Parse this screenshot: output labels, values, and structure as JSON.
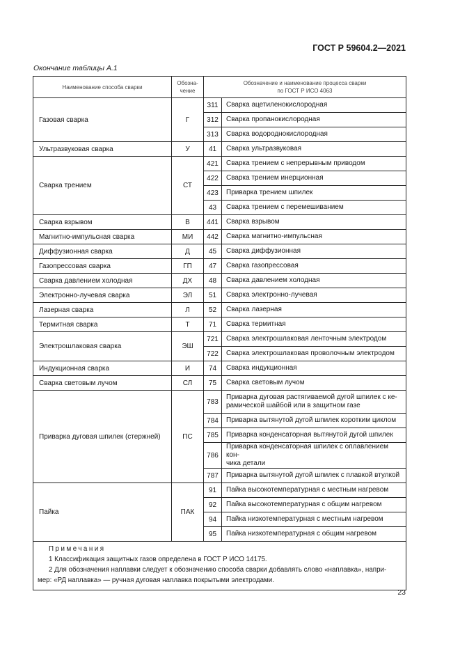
{
  "header": {
    "doc_code": "ГОСТ Р 59604.2—2021"
  },
  "caption": "Окончание таблицы А.1",
  "table": {
    "columns": [
      "Наименование способа сварки",
      "Обозна-\nчение",
      "Обозначение и наименование процесса сварки\nпо ГОСТ Р ИСО 4063"
    ],
    "groups": [
      {
        "name": "Газовая сварка",
        "code": "Г",
        "processes": [
          {
            "num": "311",
            "name": "Сварка ацетиленокислородная"
          },
          {
            "num": "312",
            "name": "Сварка пропанокислородная"
          },
          {
            "num": "313",
            "name": "Сварка водороднокислородная"
          }
        ]
      },
      {
        "name": "Ультразвуковая сварка",
        "code": "У",
        "processes": [
          {
            "num": "41",
            "name": "Сварка ультразвуковая"
          }
        ]
      },
      {
        "name": "Сварка трением",
        "code": "СТ",
        "processes": [
          {
            "num": "421",
            "name": "Сварка трением с непрерывным приводом"
          },
          {
            "num": "422",
            "name": "Сварка трением инерционная"
          },
          {
            "num": "423",
            "name": "Приварка трением шпилек"
          },
          {
            "num": "43",
            "name": "Сварка трением с перемешиванием"
          }
        ]
      },
      {
        "name": "Сварка взрывом",
        "code": "В",
        "processes": [
          {
            "num": "441",
            "name": "Сварка взрывом"
          }
        ]
      },
      {
        "name": "Магнитно-импульсная сварка",
        "code": "МИ",
        "processes": [
          {
            "num": "442",
            "name": "Сварка магнитно-импульсная"
          }
        ]
      },
      {
        "name": "Диффузионная сварка",
        "code": "Д",
        "processes": [
          {
            "num": "45",
            "name": "Сварка диффузионная"
          }
        ]
      },
      {
        "name": "Газопрессовая сварка",
        "code": "ГП",
        "processes": [
          {
            "num": "47",
            "name": "Сварка газопрессовая"
          }
        ]
      },
      {
        "name": "Сварка давлением холодная",
        "code": "ДХ",
        "processes": [
          {
            "num": "48",
            "name": "Сварка давлением холодная"
          }
        ]
      },
      {
        "name": "Электронно-лучевая сварка",
        "code": "ЭЛ",
        "processes": [
          {
            "num": "51",
            "name": "Сварка электронно-лучевая"
          }
        ]
      },
      {
        "name": "Лазерная сварка",
        "code": "Л",
        "processes": [
          {
            "num": "52",
            "name": "Сварка лазерная"
          }
        ]
      },
      {
        "name": "Термитная сварка",
        "code": "Т",
        "processes": [
          {
            "num": "71",
            "name": "Сварка термитная"
          }
        ]
      },
      {
        "name": "Электрошлаковая сварка",
        "code": "ЭШ",
        "processes": [
          {
            "num": "721",
            "name": "Сварка электрошлаковая ленточным электродом"
          },
          {
            "num": "722",
            "name": "Сварка электрошлаковая проволочным электродом"
          }
        ]
      },
      {
        "name": "Индукционная сварка",
        "code": "И",
        "processes": [
          {
            "num": "74",
            "name": "Сварка индукционная"
          }
        ]
      },
      {
        "name": "Сварка световым лучом",
        "code": "СЛ",
        "processes": [
          {
            "num": "75",
            "name": "Сварка световым лучом"
          }
        ]
      },
      {
        "name": "Приварка дуговая шпилек (стержней)",
        "code": "ПС",
        "processes": [
          {
            "num": "783",
            "name": "Приварка дуговая растягиваемой дугой шпилек с ке-\nрамической шайбой или в защитном газе"
          },
          {
            "num": "784",
            "name": "Приварка вытянутой дугой шпилек коротким циклом"
          },
          {
            "num": "785",
            "name": "Приварка конденсаторная вытянутой дугой шпилек"
          },
          {
            "num": "786",
            "name": "Приварка конденсаторная шпилек с оплавлением кон-\nчика детали"
          },
          {
            "num": "787",
            "name": "Приварка вытянутой дугой шпилек с плавкой втулкой"
          }
        ]
      },
      {
        "name": "Пайка",
        "code": "ПАК",
        "processes": [
          {
            "num": "91",
            "name": "Пайка высокотемпературная с местным нагревом"
          },
          {
            "num": "92",
            "name": "Пайка высокотемпературная с общим нагревом"
          },
          {
            "num": "94",
            "name": "Пайка низкотемпературная с местным нагревом"
          },
          {
            "num": "95",
            "name": "Пайка низкотемпературная с общим нагревом"
          }
        ]
      }
    ]
  },
  "notes": {
    "title": "Примечания",
    "items": [
      "1 Классификация защитных газов определена в ГОСТ Р ИСО 14175.",
      "2 Для обозначения наплавки следует к обозначению способа сварки добавлять слово «наплавка», напри-\nмер: «РД наплавка» — ручная дуговая наплавка покрытыми электродами."
    ]
  },
  "page_number": "23"
}
